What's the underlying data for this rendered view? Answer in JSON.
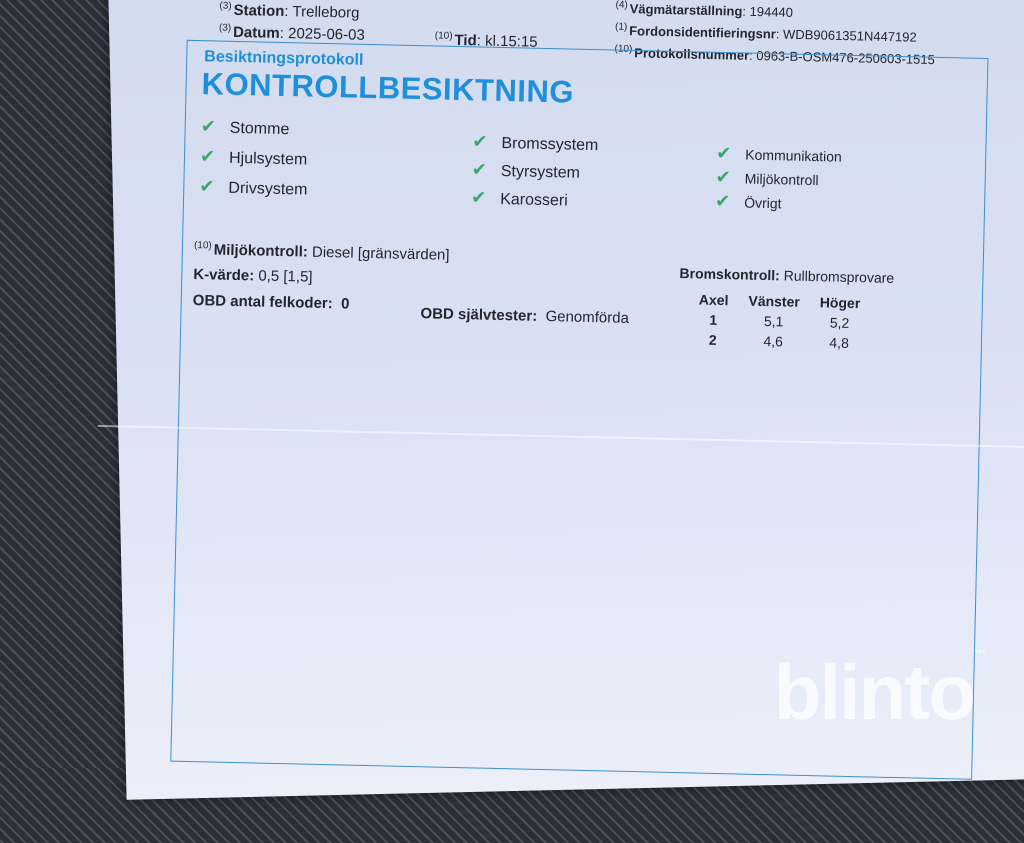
{
  "header": {
    "station": {
      "ref": "(3)",
      "label": "Station",
      "value": "Trelleborg"
    },
    "datum": {
      "ref": "(3)",
      "label": "Datum",
      "value": "2025-06-03"
    },
    "tid": {
      "ref": "(10)",
      "label": "Tid",
      "value": "kl.15:15"
    },
    "vagmatar": {
      "ref": "(4)",
      "label": "Vägmätarställning",
      "value": "194440"
    },
    "fordonsid": {
      "ref": "(1)",
      "label": "Fordonsidentifieringsnr",
      "value": "WDB9061351N447192"
    },
    "protokollnr": {
      "ref": "(10)",
      "label": "Protokollsnummer",
      "value": "0963-B-OSM476-250603-1515"
    }
  },
  "subtitle": "Besiktningsprotokoll",
  "title": "KONTROLLBESIKTNING",
  "checks": {
    "col1": [
      "Stomme",
      "Hjulsystem",
      "Drivsystem"
    ],
    "col2": [
      "Bromssystem",
      "Styrsystem",
      "Karosseri"
    ],
    "col3": [
      "Kommunikation",
      "Miljökontroll",
      "Övrigt"
    ],
    "icon": "checkmark-icon",
    "check_color": "#3aa86a"
  },
  "miljo": {
    "ref": "(10)",
    "label": "Miljökontroll:",
    "value": "Diesel [gränsvärden]"
  },
  "kvarde": {
    "label": "K-värde:",
    "value": "0,5 [1,5]"
  },
  "obd_felkoder": {
    "label": "OBD antal felkoder:",
    "value": "0"
  },
  "obd_sjalvtester": {
    "label": "OBD självtester:",
    "value": "Genomförda"
  },
  "broms": {
    "label": "Bromskontroll:",
    "value": "Rullbromsprovare",
    "headers": [
      "Axel",
      "Vänster",
      "Höger"
    ],
    "rows": [
      [
        "1",
        "5,1",
        "5,2"
      ],
      [
        "2",
        "4,6",
        "4,8"
      ]
    ]
  },
  "watermark": "blinto",
  "accent_color": "#1e8fdb"
}
